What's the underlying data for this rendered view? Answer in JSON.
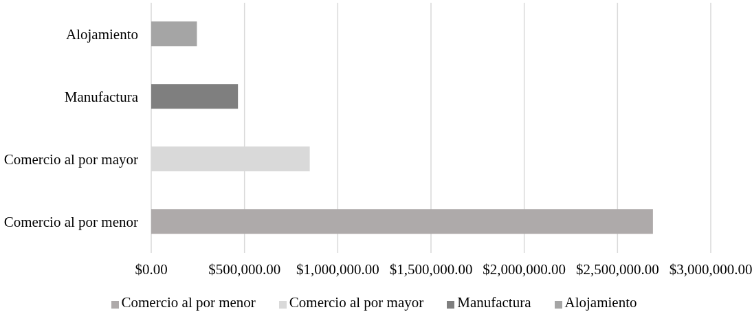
{
  "chart_data": {
    "type": "bar",
    "orientation": "horizontal",
    "stacked": true,
    "categories": [
      "Alojamiento",
      "Manufactura",
      "Comercio al por mayor",
      "Comercio al por menor"
    ],
    "series": [
      {
        "name": "Comercio al por menor",
        "color": "#aeaaaa",
        "values": [
          null,
          null,
          null,
          2690000
        ]
      },
      {
        "name": "Comercio al por mayor",
        "color": "#d9d9d9",
        "values": [
          null,
          null,
          850000,
          null
        ]
      },
      {
        "name": "Manufactura",
        "color": "#7f7f7f",
        "values": [
          null,
          465000,
          null,
          null
        ]
      },
      {
        "name": "Alojamiento",
        "color": "#a5a5a5",
        "values": [
          245000,
          null,
          null,
          null
        ]
      }
    ],
    "xlim": [
      0,
      3000000
    ],
    "xticks": [
      {
        "value": 0,
        "label": "$0.00"
      },
      {
        "value": 500000,
        "label": "$500,000.00"
      },
      {
        "value": 1000000,
        "label": "$1,000,000.00"
      },
      {
        "value": 1500000,
        "label": "$1,500,000.00"
      },
      {
        "value": 2000000,
        "label": "$2,000,000.00"
      },
      {
        "value": 2500000,
        "label": "$2,500,000.00"
      },
      {
        "value": 3000000,
        "label": "$3,000,000.00"
      }
    ],
    "grid": "x",
    "legend": "bottom"
  }
}
